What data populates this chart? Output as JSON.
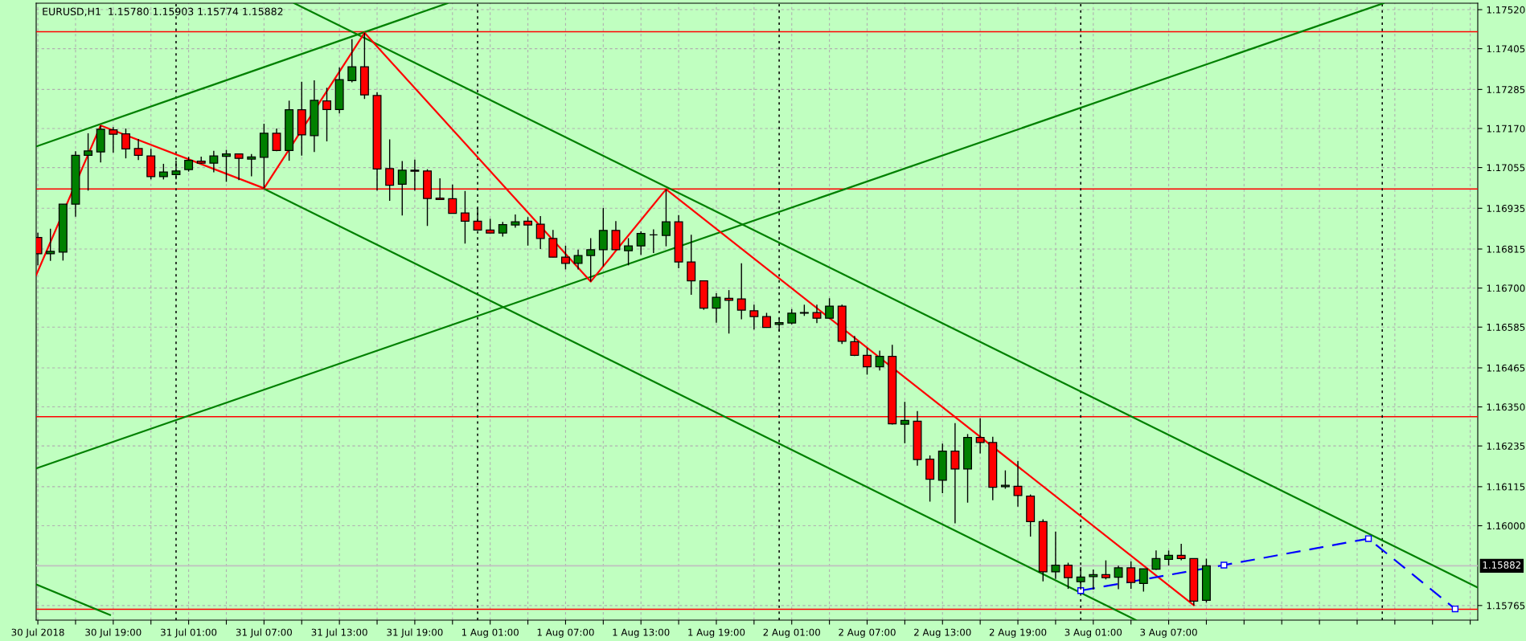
{
  "chart_data": {
    "type": "candlestick",
    "title": "EURUSD,H1  1.15780 1.15903 1.15774 1.15882",
    "x": [
      "2018-07-30T13:00",
      "2018-07-30T14:00",
      "2018-07-30T15:00",
      "2018-07-30T16:00",
      "2018-07-30T17:00",
      "2018-07-30T18:00",
      "2018-07-30T19:00",
      "2018-07-30T20:00",
      "2018-07-30T21:00",
      "2018-07-30T22:00",
      "2018-07-30T23:00",
      "2018-07-31T00:00",
      "2018-07-31T01:00",
      "2018-07-31T02:00",
      "2018-07-31T03:00",
      "2018-07-31T04:00",
      "2018-07-31T05:00",
      "2018-07-31T06:00",
      "2018-07-31T07:00",
      "2018-07-31T08:00",
      "2018-07-31T09:00",
      "2018-07-31T10:00",
      "2018-07-31T11:00",
      "2018-07-31T12:00",
      "2018-07-31T13:00",
      "2018-07-31T14:00",
      "2018-07-31T15:00",
      "2018-07-31T16:00",
      "2018-07-31T17:00",
      "2018-07-31T18:00",
      "2018-07-31T19:00",
      "2018-07-31T20:00",
      "2018-07-31T21:00",
      "2018-07-31T22:00",
      "2018-07-31T23:00",
      "2018-08-01T00:00",
      "2018-08-01T01:00",
      "2018-08-01T02:00",
      "2018-08-01T03:00",
      "2018-08-01T04:00",
      "2018-08-01T05:00",
      "2018-08-01T06:00",
      "2018-08-01T07:00",
      "2018-08-01T08:00",
      "2018-08-01T09:00",
      "2018-08-01T10:00",
      "2018-08-01T11:00",
      "2018-08-01T12:00",
      "2018-08-01T13:00",
      "2018-08-01T14:00",
      "2018-08-01T15:00",
      "2018-08-01T16:00",
      "2018-08-01T17:00",
      "2018-08-01T18:00",
      "2018-08-01T19:00",
      "2018-08-01T20:00",
      "2018-08-01T21:00",
      "2018-08-01T22:00",
      "2018-08-01T23:00",
      "2018-08-02T00:00",
      "2018-08-02T01:00",
      "2018-08-02T02:00",
      "2018-08-02T03:00",
      "2018-08-02T04:00",
      "2018-08-02T05:00",
      "2018-08-02T06:00",
      "2018-08-02T07:00",
      "2018-08-02T08:00",
      "2018-08-02T09:00",
      "2018-08-02T10:00",
      "2018-08-02T11:00",
      "2018-08-02T12:00",
      "2018-08-02T13:00",
      "2018-08-02T14:00",
      "2018-08-02T15:00",
      "2018-08-02T16:00",
      "2018-08-02T17:00",
      "2018-08-02T18:00",
      "2018-08-02T19:00",
      "2018-08-02T20:00",
      "2018-08-02T21:00",
      "2018-08-02T22:00",
      "2018-08-02T23:00",
      "2018-08-03T00:00",
      "2018-08-03T01:00",
      "2018-08-03T02:00",
      "2018-08-03T03:00",
      "2018-08-03T04:00",
      "2018-08-03T05:00",
      "2018-08-03T06:00",
      "2018-08-03T07:00",
      "2018-08-03T08:00",
      "2018-08-03T09:00",
      "2018-08-03T10:00"
    ],
    "ohlc": [
      [
        1.16849,
        1.16863,
        1.16767,
        1.16801
      ],
      [
        1.16801,
        1.16875,
        1.1678,
        1.16808
      ],
      [
        1.16806,
        1.16947,
        1.16781,
        1.16947
      ],
      [
        1.16947,
        1.17103,
        1.1691,
        1.17091
      ],
      [
        1.17091,
        1.17156,
        1.16987,
        1.17104
      ],
      [
        1.17101,
        1.17179,
        1.1707,
        1.17168
      ],
      [
        1.17166,
        1.17174,
        1.17099,
        1.17153
      ],
      [
        1.17154,
        1.1717,
        1.17082,
        1.1711
      ],
      [
        1.17111,
        1.17139,
        1.17077,
        1.17091
      ],
      [
        1.17089,
        1.1711,
        1.1702,
        1.17028
      ],
      [
        1.17028,
        1.17066,
        1.1702,
        1.17042
      ],
      [
        1.17034,
        1.17076,
        1.1702,
        1.17045
      ],
      [
        1.17049,
        1.17087,
        1.17043,
        1.17076
      ],
      [
        1.17074,
        1.17087,
        1.17066,
        1.17068
      ],
      [
        1.17068,
        1.17104,
        1.17041,
        1.17089
      ],
      [
        1.17088,
        1.17107,
        1.17013,
        1.17095
      ],
      [
        1.17095,
        1.17095,
        1.17018,
        1.17082
      ],
      [
        1.1708,
        1.17095,
        1.17029,
        1.17086
      ],
      [
        1.17085,
        1.17184,
        1.16994,
        1.17156
      ],
      [
        1.17156,
        1.1717,
        1.17103,
        1.17105
      ],
      [
        1.17105,
        1.17252,
        1.17075,
        1.17225
      ],
      [
        1.17225,
        1.17308,
        1.1709,
        1.17151
      ],
      [
        1.17149,
        1.17312,
        1.17101,
        1.17253
      ],
      [
        1.17251,
        1.1729,
        1.17132,
        1.17226
      ],
      [
        1.17226,
        1.1735,
        1.17214,
        1.17314
      ],
      [
        1.17311,
        1.17433,
        1.17306,
        1.17352
      ],
      [
        1.17352,
        1.17452,
        1.17257,
        1.17269
      ],
      [
        1.17267,
        1.17277,
        1.16987,
        1.17051
      ],
      [
        1.17052,
        1.17138,
        1.16957,
        1.17003
      ],
      [
        1.17006,
        1.17074,
        1.16914,
        1.17047
      ],
      [
        1.17047,
        1.17078,
        1.16987,
        1.17044
      ],
      [
        1.17045,
        1.1705,
        1.16883,
        1.16964
      ],
      [
        1.16965,
        1.17023,
        1.16961,
        1.16961
      ],
      [
        1.16963,
        1.17005,
        1.1692,
        1.1692
      ],
      [
        1.16921,
        1.16986,
        1.16831,
        1.16897
      ],
      [
        1.16897,
        1.16936,
        1.16869,
        1.16871
      ],
      [
        1.16871,
        1.16904,
        1.16862,
        1.16862
      ],
      [
        1.16862,
        1.16895,
        1.16852,
        1.16887
      ],
      [
        1.16886,
        1.16917,
        1.16878,
        1.16895
      ],
      [
        1.16897,
        1.16909,
        1.16825,
        1.16886
      ],
      [
        1.16888,
        1.16912,
        1.16815,
        1.16846
      ],
      [
        1.16846,
        1.16871,
        1.16791,
        1.16791
      ],
      [
        1.16791,
        1.16825,
        1.16755,
        1.16773
      ],
      [
        1.16773,
        1.16813,
        1.16755,
        1.16796
      ],
      [
        1.16796,
        1.16847,
        1.16719,
        1.16813
      ],
      [
        1.16813,
        1.16936,
        1.16764,
        1.1687
      ],
      [
        1.1687,
        1.16897,
        1.16813,
        1.16813
      ],
      [
        1.1681,
        1.16847,
        1.16767,
        1.16824
      ],
      [
        1.16824,
        1.16867,
        1.16798,
        1.16861
      ],
      [
        1.16857,
        1.16873,
        1.16803,
        1.16857
      ],
      [
        1.16855,
        1.16991,
        1.16823,
        1.16895
      ],
      [
        1.16895,
        1.16915,
        1.16758,
        1.16777
      ],
      [
        1.16777,
        1.16857,
        1.1668,
        1.16721
      ],
      [
        1.16721,
        1.16721,
        1.16636,
        1.16641
      ],
      [
        1.16641,
        1.16685,
        1.16598,
        1.16673
      ],
      [
        1.1667,
        1.16694,
        1.16566,
        1.16664
      ],
      [
        1.16668,
        1.16773,
        1.16608,
        1.16635
      ],
      [
        1.16633,
        1.16651,
        1.16578,
        1.16616
      ],
      [
        1.16616,
        1.16627,
        1.16583,
        1.16584
      ],
      [
        1.16593,
        1.16612,
        1.16574,
        1.16598
      ],
      [
        1.16597,
        1.16638,
        1.16593,
        1.16626
      ],
      [
        1.16626,
        1.16651,
        1.16618,
        1.16628
      ],
      [
        1.16628,
        1.16651,
        1.16597,
        1.16611
      ],
      [
        1.16611,
        1.1667,
        1.1661,
        1.16647
      ],
      [
        1.16647,
        1.16651,
        1.16535,
        1.16543
      ],
      [
        1.16542,
        1.16559,
        1.165,
        1.16502
      ],
      [
        1.16502,
        1.16524,
        1.16445,
        1.16468
      ],
      [
        1.16468,
        1.16516,
        1.16457,
        1.16499
      ],
      [
        1.16499,
        1.16533,
        1.16298,
        1.163
      ],
      [
        1.16299,
        1.16365,
        1.16243,
        1.1631
      ],
      [
        1.16308,
        1.16338,
        1.16177,
        1.16195
      ],
      [
        1.16196,
        1.16207,
        1.16071,
        1.16137
      ],
      [
        1.16134,
        1.16242,
        1.16096,
        1.1622
      ],
      [
        1.1622,
        1.16302,
        1.16007,
        1.16167
      ],
      [
        1.16167,
        1.1627,
        1.16068,
        1.1626
      ],
      [
        1.1626,
        1.16317,
        1.16213,
        1.16245
      ],
      [
        1.16245,
        1.16262,
        1.16075,
        1.16113
      ],
      [
        1.16115,
        1.16163,
        1.16109,
        1.16119
      ],
      [
        1.16116,
        1.16191,
        1.16056,
        1.16089
      ],
      [
        1.16087,
        1.16092,
        1.15968,
        1.16012
      ],
      [
        1.16012,
        1.16019,
        1.15836,
        1.15864
      ],
      [
        1.15864,
        1.15983,
        1.15843,
        1.15884
      ],
      [
        1.15884,
        1.15891,
        1.15814,
        1.15847
      ],
      [
        1.15835,
        1.15878,
        1.15812,
        1.15849
      ],
      [
        1.1585,
        1.15871,
        1.15812,
        1.15856
      ],
      [
        1.15856,
        1.15898,
        1.15842,
        1.15847
      ],
      [
        1.15848,
        1.15882,
        1.15813,
        1.15876
      ],
      [
        1.15876,
        1.15895,
        1.15814,
        1.15833
      ],
      [
        1.1583,
        1.15873,
        1.15806,
        1.15873
      ],
      [
        1.15872,
        1.15927,
        1.1587,
        1.15903
      ],
      [
        1.15901,
        1.15927,
        1.15883,
        1.15913
      ],
      [
        1.15913,
        1.15947,
        1.15898,
        1.15903
      ],
      [
        1.15903,
        1.15903,
        1.15766,
        1.15778
      ],
      [
        1.1578,
        1.15903,
        1.15774,
        1.15882
      ]
    ],
    "colors": [
      "#ff0000",
      "#008000",
      "#008000",
      "#008000",
      "#008000",
      "#008000",
      "#ff0000",
      "#ff0000",
      "#ff0000",
      "#ff0000",
      "#008000",
      "#008000",
      "#008000",
      "#ff0000",
      "#008000",
      "#008000",
      "#ff0000",
      "#008000",
      "#008000",
      "#ff0000",
      "#008000",
      "#ff0000",
      "#008000",
      "#ff0000",
      "#008000",
      "#008000",
      "#ff0000",
      "#ff0000",
      "#ff0000",
      "#008000",
      "#ff0000",
      "#ff0000",
      "#ff0000",
      "#ff0000",
      "#ff0000",
      "#ff0000",
      "#ff0000",
      "#008000",
      "#008000",
      "#ff0000",
      "#ff0000",
      "#ff0000",
      "#ff0000",
      "#008000",
      "#008000",
      "#008000",
      "#ff0000",
      "#008000",
      "#008000",
      "#000000",
      "#008000",
      "#ff0000",
      "#ff0000",
      "#ff0000",
      "#008000",
      "#ff0000",
      "#ff0000",
      "#ff0000",
      "#ff0000",
      "#008000",
      "#008000",
      "#008000",
      "#ff0000",
      "#008000",
      "#ff0000",
      "#ff0000",
      "#ff0000",
      "#008000",
      "#ff0000",
      "#008000",
      "#ff0000",
      "#ff0000",
      "#008000",
      "#ff0000",
      "#008000",
      "#ff0000",
      "#ff0000",
      "#008000",
      "#ff0000",
      "#ff0000",
      "#ff0000",
      "#008000",
      "#ff0000",
      "#008000",
      "#008000",
      "#ff0000",
      "#008000",
      "#ff0000",
      "#008000",
      "#008000",
      "#008000",
      "#ff0000",
      "#ff0000",
      "#008000"
    ],
    "series": [
      {
        "type": "line",
        "color": "#008000",
        "x": [
          "2018-07-30T12:52",
          "2018-07-31T21:36"
        ],
        "values": [
          1.17117,
          1.17539
        ]
      },
      {
        "type": "line",
        "color": "#008000",
        "x": [
          "2018-07-30T12:52",
          "2018-08-04T00:06"
        ],
        "values": [
          1.16169,
          1.17539
        ]
      },
      {
        "type": "line",
        "color": "#008000",
        "x": [
          "2018-07-30T12:52",
          "2018-07-30T18:45"
        ],
        "values": [
          1.15827,
          1.15737
        ]
      },
      {
        "type": "line",
        "color": "#008000",
        "x": [
          "2018-07-31T09:24",
          "2018-08-04T07:36"
        ],
        "values": [
          1.17539,
          1.15818
        ]
      },
      {
        "type": "line",
        "color": "#008000",
        "x": [
          "2018-07-31T06:54",
          "2018-08-03T04:24"
        ],
        "values": [
          1.16994,
          1.15722
        ]
      },
      {
        "type": "line",
        "color": "#ff0000",
        "x": [
          "2018-07-30T12:52",
          "2018-07-30T18:00",
          "2018-07-31T07:00",
          "2018-07-31T15:00",
          "2018-08-01T09:00",
          "2018-08-01T15:00",
          "2018-08-03T09:00"
        ],
        "values": [
          1.16738,
          1.17179,
          1.16994,
          1.17452,
          1.16719,
          1.16991,
          1.15766
        ]
      },
      {
        "type": "line",
        "color": "#0000ff",
        "line_style": "dashed",
        "marker": "square",
        "x": [
          "2018-08-03T00:00",
          "2018-08-03T11:24",
          "2018-08-03T22:54",
          "2018-08-04T05:48"
        ],
        "values": [
          1.15809,
          1.15884,
          1.15962,
          1.15755
        ]
      }
    ],
    "ref_lines": [
      {
        "axis": "y",
        "value": 1.17455,
        "color": "#ff0000"
      },
      {
        "axis": "y",
        "value": 1.16992,
        "color": "#ff0000"
      },
      {
        "axis": "y",
        "value": 1.16321,
        "color": "#ff0000"
      },
      {
        "axis": "y",
        "value": 1.15754,
        "color": "#ff0000"
      },
      {
        "axis": "y",
        "value": 1.15882,
        "color": "#c0c0c0",
        "label": "1.15882"
      },
      {
        "axis": "x",
        "value": "2018-07-31T00:00",
        "color": "#000000",
        "line_style": "dotted"
      },
      {
        "axis": "x",
        "value": "2018-08-01T00:00",
        "color": "#000000",
        "line_style": "dotted"
      },
      {
        "axis": "x",
        "value": "2018-08-02T00:00",
        "color": "#000000",
        "line_style": "dotted"
      },
      {
        "axis": "x",
        "value": "2018-08-03T00:00",
        "color": "#000000",
        "line_style": "dotted"
      },
      {
        "axis": "x",
        "value": "2018-08-04T00:00",
        "color": "#000000",
        "line_style": "dotted"
      }
    ],
    "xlim": [
      "2018-07-30T12:52",
      "2018-08-04T07:36"
    ],
    "ylim": [
      1.15722,
      1.17539
    ],
    "xticks": [
      {
        "value": "2018-07-30T13:00",
        "label": "30 Jul 2018"
      },
      {
        "value": "2018-07-30T16:00",
        "label": null
      },
      {
        "value": "2018-07-30T19:00",
        "label": "30 Jul 19:00"
      },
      {
        "value": "2018-07-30T22:00",
        "label": null
      },
      {
        "value": "2018-07-31T01:00",
        "label": "31 Jul 01:00"
      },
      {
        "value": "2018-07-31T04:00",
        "label": null
      },
      {
        "value": "2018-07-31T07:00",
        "label": "31 Jul 07:00"
      },
      {
        "value": "2018-07-31T10:00",
        "label": null
      },
      {
        "value": "2018-07-31T13:00",
        "label": "31 Jul 13:00"
      },
      {
        "value": "2018-07-31T16:00",
        "label": null
      },
      {
        "value": "2018-07-31T19:00",
        "label": "31 Jul 19:00"
      },
      {
        "value": "2018-07-31T22:00",
        "label": null
      },
      {
        "value": "2018-08-01T01:00",
        "label": "1 Aug 01:00"
      },
      {
        "value": "2018-08-01T04:00",
        "label": null
      },
      {
        "value": "2018-08-01T07:00",
        "label": "1 Aug 07:00"
      },
      {
        "value": "2018-08-01T10:00",
        "label": null
      },
      {
        "value": "2018-08-01T13:00",
        "label": "1 Aug 13:00"
      },
      {
        "value": "2018-08-01T16:00",
        "label": null
      },
      {
        "value": "2018-08-01T19:00",
        "label": "1 Aug 19:00"
      },
      {
        "value": "2018-08-01T22:00",
        "label": null
      },
      {
        "value": "2018-08-02T01:00",
        "label": "2 Aug 01:00"
      },
      {
        "value": "2018-08-02T04:00",
        "label": null
      },
      {
        "value": "2018-08-02T07:00",
        "label": "2 Aug 07:00"
      },
      {
        "value": "2018-08-02T10:00",
        "label": null
      },
      {
        "value": "2018-08-02T13:00",
        "label": "2 Aug 13:00"
      },
      {
        "value": "2018-08-02T16:00",
        "label": null
      },
      {
        "value": "2018-08-02T19:00",
        "label": "2 Aug 19:00"
      },
      {
        "value": "2018-08-02T22:00",
        "label": null
      },
      {
        "value": "2018-08-03T01:00",
        "label": "3 Aug 01:00"
      },
      {
        "value": "2018-08-03T04:00",
        "label": null
      },
      {
        "value": "2018-08-03T07:00",
        "label": "3 Aug 07:00"
      },
      {
        "value": "2018-08-03T10:00",
        "label": null
      },
      {
        "value": "2018-08-03T13:00",
        "label": null
      },
      {
        "value": "2018-08-03T16:00",
        "label": null
      },
      {
        "value": "2018-08-03T19:00",
        "label": null
      },
      {
        "value": "2018-08-03T22:00",
        "label": null
      },
      {
        "value": "2018-08-04T01:00",
        "label": null
      },
      {
        "value": "2018-08-04T04:00",
        "label": null
      },
      {
        "value": "2018-08-04T07:00",
        "label": null
      }
    ],
    "yticks": [
      {
        "value": 1.1752,
        "label": "1.17520"
      },
      1.17405,
      1.17285,
      {
        "value": 1.1717,
        "label": "1.17170"
      },
      1.17055,
      1.16935,
      1.16815,
      {
        "value": 1.167,
        "label": "1.16700"
      },
      1.16585,
      1.16465,
      {
        "value": 1.1635,
        "label": "1.16350"
      },
      1.16235,
      1.16115,
      {
        "value": 1.16,
        "label": "1.16000"
      },
      1.15765
    ],
    "grid": true
  }
}
